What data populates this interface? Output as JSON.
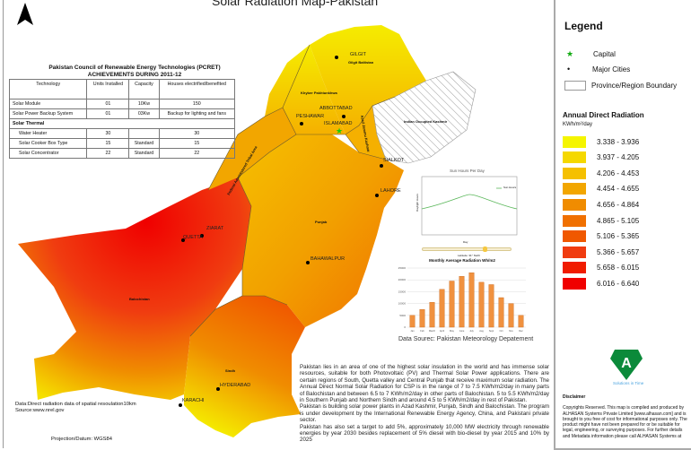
{
  "title": "Solar Radiation Map-Pakistan",
  "table": {
    "title": "Pakistan Council of Renewable Energy Technologies (PCRET)",
    "subtitle": "ACHIEVEMENTS DURING 2011-12",
    "headers": [
      "Technology",
      "Units Installed",
      "Capacity",
      "Houses electrified/benefited"
    ],
    "rows": [
      [
        "Solar Module",
        "01",
        "10Kw",
        "150"
      ],
      [
        "Solar Power Backup System",
        "01",
        "03Kw",
        "Backup for lighting and fans"
      ]
    ],
    "section": "Solar Thermal",
    "section_rows": [
      [
        "Water Heater",
        "30",
        "",
        "30"
      ],
      [
        "Solar Cooker Box Type",
        "15",
        "Standard",
        "15"
      ],
      [
        "Solar Concentrator",
        "22",
        "Standard",
        "22"
      ]
    ]
  },
  "map_labels": {
    "cities": [
      "GILGIT",
      "ABBOTTABAD",
      "PESHAWAR",
      "ISLAMABAD",
      "SIALKOT",
      "LAHORE",
      "QUETTA",
      "ZIARAT",
      "BAHAWALPUR",
      "HYDERABAD",
      "KARACHI"
    ],
    "regions": [
      "Gilgit Baltistan",
      "Khyber Pakhtunkhwa",
      "Indian Occupied Kashmir",
      "Azad Jammu Kashmir",
      "Federal Administered Tribal Area",
      "Punjab",
      "Balochistan",
      "Sindh"
    ]
  },
  "source_note": {
    "line1": "Data:Direct radiation data of  spatial resoulation10km",
    "line2": "Source:www.nrel.gov"
  },
  "projection": "Projection/Datum:   WGS84",
  "data_source": "Data Sourec: Pakistan Meteorology Depatement",
  "sun_chart": {
    "title": "Sun Hours Per Day",
    "ylabel": "Daylight Hours",
    "xlabel": "Day",
    "legend": "Sun Hours",
    "slider_label": "Latitude: 31° North",
    "slider_value": 0.7
  },
  "chart_data": {
    "type": "bar",
    "title": "Monthly Average Radiation Wh/m2",
    "categories": [
      "Jan",
      "Feb",
      "March",
      "April",
      "May",
      "June",
      "July",
      "Aug",
      "Sept",
      "Oct",
      "Nov",
      "Dec"
    ],
    "values": [
      5000,
      7500,
      10500,
      16000,
      19500,
      21500,
      23000,
      19000,
      18000,
      12500,
      10000,
      5000
    ],
    "ylim": [
      0,
      25000
    ],
    "yticks": [
      "0",
      "5000",
      "10000",
      "15000",
      "20000",
      "25000"
    ]
  },
  "paragraphs": [
    "Pakistan lies in an area of one of the highest solar insulation in the world and has immense solar resources, suitable for both Photovoltaic (PV) and Thermal Solar Power applications. There are certain regions of South, Quetta valley and Central Punjab that receive maximum solar radiation. The Annual Direct Normal Solar Radiation for CSP is in the range of 7 to 7.5 KWh/m2/day in many parts of Balochistan and between 6.5 to 7 KWh/m2/day in other parts of Balochistan. 5 to 5.5 KWh/m2/day in Southern Punjab and Northern Sindh and around 4.5 to 5 KWh/m2/day in rest of Pakistan.",
    "Pakistan is building solar power plants in Azad Kashmir, Punjab, Sindh and Balochistan. The program is under development by the International Renewable Energy Agency, China, and Pakistani private sector.",
    "Pakistan has also set a target to add 5%, approximately 10,000 MW electricity through renewable energies by year 2030 besides replacement of 5% diesel with bio-diesel by year 2015 and 10% by 2025"
  ],
  "legend": {
    "title": "Legend",
    "capital": "Capital",
    "cities": "Major Cities",
    "boundary": "Province/Region Boundary",
    "ramp_title": "Annual Direct Radiation",
    "ramp_unit": "KWh/m²/day",
    "classes": [
      {
        "label": "3.338 - 3.936",
        "color": "#f5f500"
      },
      {
        "label": "3.937 - 4.205",
        "color": "#f5d800"
      },
      {
        "label": "4.206 - 4.453",
        "color": "#f5c000"
      },
      {
        "label": "4.454 - 4.655",
        "color": "#f2a600"
      },
      {
        "label": "4.656 - 4.864",
        "color": "#f08c00"
      },
      {
        "label": "4.865 - 5.105",
        "color": "#f07000"
      },
      {
        "label": "5.106 - 5.365",
        "color": "#f05800"
      },
      {
        "label": "5.366 - 5.657",
        "color": "#f03c10"
      },
      {
        "label": "5.658 - 6.015",
        "color": "#f01c00"
      },
      {
        "label": "6.016 - 6.640",
        "color": "#f00000"
      }
    ]
  },
  "logo": {
    "text": "A",
    "tagline": "Solutions in Time"
  },
  "disclaimer": {
    "title": "Disclaimer",
    "text": "Copyrights Reserved. This map is compiled and produced by ALHASAN Systems Private Limited [www.alhasan.com] and is brought to you free of cost for informational purposes only. The product might have not been prepared for or be suitable for legal, engineering, or surveying purposes. For further details and Metadata information please call ALHASAN Systems at"
  }
}
